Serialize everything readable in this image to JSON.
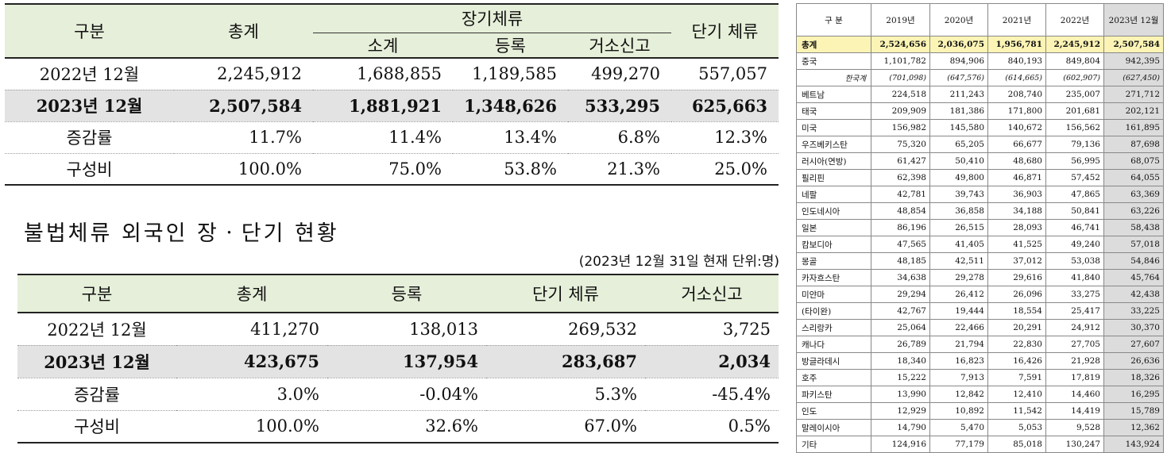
{
  "long_short_table": {
    "headers": {
      "category": "구분",
      "total": "총계",
      "long_term": "장기체류",
      "subtotal": "소계",
      "registered": "등록",
      "residence_report": "거소신고",
      "short_term": "단기 체류"
    },
    "rows": [
      {
        "label": "2022년 12월",
        "total": "2,245,912",
        "subtotal": "1,688,855",
        "registered": "1,189,585",
        "residence": "499,270",
        "short": "557,057"
      },
      {
        "label": "2023년 12월",
        "total": "2,507,584",
        "subtotal": "1,881,921",
        "registered": "1,348,626",
        "residence": "533,295",
        "short": "625,663"
      },
      {
        "label": "증감률",
        "total": "11.7%",
        "subtotal": "11.4%",
        "registered": "13.4%",
        "residence": "6.8%",
        "short": "12.3%"
      },
      {
        "label": "구성비",
        "total": "100.0%",
        "subtotal": "75.0%",
        "registered": "53.8%",
        "residence": "21.3%",
        "short": "25.0%"
      }
    ]
  },
  "illegal_section": {
    "title": "불법체류 외국인 장ㆍ단기 현황",
    "as_of": "(2023년 12월 31일 현재 단위:명)"
  },
  "illegal_table": {
    "headers": {
      "category": "구분",
      "total": "총계",
      "registered": "등록",
      "short_term": "단기 체류",
      "residence_report": "거소신고"
    },
    "rows": [
      {
        "label": "2022년 12월",
        "total": "411,270",
        "registered": "138,013",
        "short": "269,532",
        "residence": "3,725"
      },
      {
        "label": "2023년 12월",
        "total": "423,675",
        "registered": "137,954",
        "short": "283,687",
        "residence": "2,034"
      },
      {
        "label": "증감률",
        "total": "3.0%",
        "registered": "-0.04%",
        "short": "5.3%",
        "residence": "-45.4%"
      },
      {
        "label": "구성비",
        "total": "100.0%",
        "registered": "32.6%",
        "short": "67.0%",
        "residence": "0.5%"
      }
    ]
  },
  "nationality_table": {
    "headers": [
      "구 분",
      "2019년",
      "2020년",
      "2021년",
      "2022년",
      "2023년 12월"
    ],
    "rows": [
      [
        "총계",
        "2,524,656",
        "2,036,075",
        "1,956,781",
        "2,245,912",
        "2,507,584"
      ],
      [
        "중국",
        "1,101,782",
        "894,906",
        "840,193",
        "849,804",
        "942,395"
      ],
      [
        "한국계",
        "(701,098)",
        "(647,576)",
        "(614,665)",
        "(602,907)",
        "(627,450)"
      ],
      [
        "베트남",
        "224,518",
        "211,243",
        "208,740",
        "235,007",
        "271,712"
      ],
      [
        "태국",
        "209,909",
        "181,386",
        "171,800",
        "201,681",
        "202,121"
      ],
      [
        "미국",
        "156,982",
        "145,580",
        "140,672",
        "156,562",
        "161,895"
      ],
      [
        "우즈베키스탄",
        "75,320",
        "65,205",
        "66,677",
        "79,136",
        "87,698"
      ],
      [
        "러시아(연방)",
        "61,427",
        "50,410",
        "48,680",
        "56,995",
        "68,075"
      ],
      [
        "필리핀",
        "62,398",
        "49,800",
        "46,871",
        "57,452",
        "64,055"
      ],
      [
        "네팔",
        "42,781",
        "39,743",
        "36,903",
        "47,865",
        "63,369"
      ],
      [
        "인도네시아",
        "48,854",
        "36,858",
        "34,188",
        "50,841",
        "63,226"
      ],
      [
        "일본",
        "86,196",
        "26,515",
        "28,093",
        "46,741",
        "58,438"
      ],
      [
        "캄보디아",
        "47,565",
        "41,405",
        "41,525",
        "49,240",
        "57,018"
      ],
      [
        "몽골",
        "48,185",
        "42,511",
        "37,012",
        "53,038",
        "54,846"
      ],
      [
        "카자흐스탄",
        "34,638",
        "29,278",
        "29,616",
        "41,840",
        "45,764"
      ],
      [
        "미얀마",
        "29,294",
        "26,412",
        "26,096",
        "33,275",
        "42,438"
      ],
      [
        "(타이완)",
        "42,767",
        "19,444",
        "18,554",
        "25,417",
        "33,225"
      ],
      [
        "스리랑카",
        "25,064",
        "22,466",
        "20,291",
        "24,912",
        "30,370"
      ],
      [
        "캐나다",
        "26,789",
        "21,794",
        "22,830",
        "27,705",
        "27,607"
      ],
      [
        "방글라데시",
        "18,340",
        "16,823",
        "16,426",
        "21,928",
        "26,636"
      ],
      [
        "호주",
        "15,222",
        "7,913",
        "7,591",
        "17,819",
        "18,326"
      ],
      [
        "파키스탄",
        "13,990",
        "12,842",
        "12,410",
        "14,460",
        "16,295"
      ],
      [
        "인도",
        "12,929",
        "10,892",
        "11,542",
        "14,419",
        "15,789"
      ],
      [
        "말레이시아",
        "14,790",
        "5,470",
        "5,053",
        "9,528",
        "12,362"
      ],
      [
        "기타",
        "124,916",
        "77,179",
        "85,018",
        "130,247",
        "143,924"
      ]
    ]
  }
}
